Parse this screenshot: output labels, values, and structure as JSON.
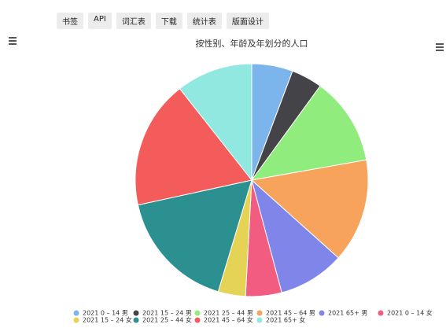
{
  "toolbar": [
    "书签",
    "API",
    "词汇表",
    "下载",
    "统计表",
    "版面设计"
  ],
  "chart_data": {
    "type": "pie",
    "title": "按性别、年龄及年划分的人口",
    "categories": [
      "2021 0 – 14 男",
      "2021 15 – 24 男",
      "2021 25 – 44 男",
      "2021 45 – 64 男",
      "2021 65+ 男",
      "2021 0 – 14 女",
      "2021 15 – 24 女",
      "2021 25 – 44 女",
      "2021 45 – 64 女",
      "2021 65+ 女"
    ],
    "values": [
      5.7,
      4.3,
      12.2,
      14.4,
      9.2,
      5.0,
      3.8,
      16.9,
      17.8,
      10.6
    ],
    "colors": [
      "#7cb5ec",
      "#434348",
      "#90ed7d",
      "#f7a35c",
      "#8085e9",
      "#f15c80",
      "#e4d354",
      "#2b908f",
      "#f45b5b",
      "#91e8e1"
    ]
  }
}
